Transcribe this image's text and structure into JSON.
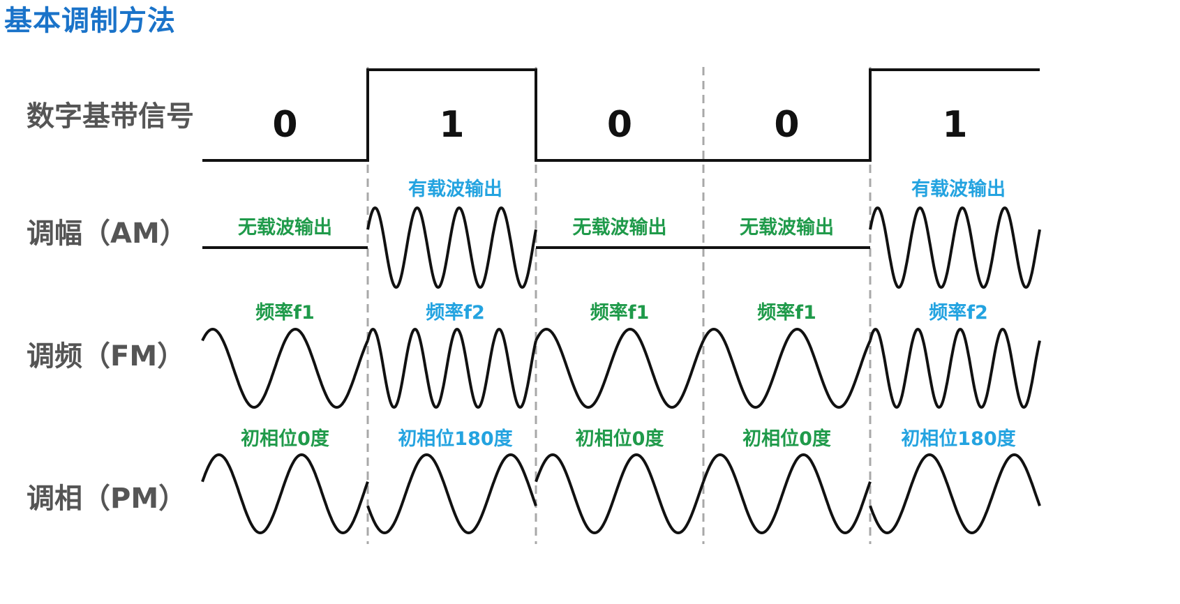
{
  "title": "基本调制方法",
  "rows": {
    "baseband": "数字基带信号",
    "am": "调幅（AM）",
    "fm": "调频（FM）",
    "pm": "调相（PM）"
  },
  "bits": [
    "0",
    "1",
    "0",
    "0",
    "1"
  ],
  "am_labels": [
    "无载波输出",
    "有载波输出",
    "无载波输出",
    "无载波输出",
    "有载波输出"
  ],
  "fm_labels": [
    "频率f1",
    "频率f2",
    "频率f1",
    "频率f1",
    "频率f2"
  ],
  "pm_labels": [
    "初相位0度",
    "初相位180度",
    "初相位0度",
    "初相位0度",
    "初相位180度"
  ],
  "colors": {
    "title": "#1a73c9",
    "label_green": "#1f9a4a",
    "label_blue": "#23a3e0",
    "waveform": "#111111",
    "divider": "#a8a8a8",
    "row_label": "#555555"
  }
}
